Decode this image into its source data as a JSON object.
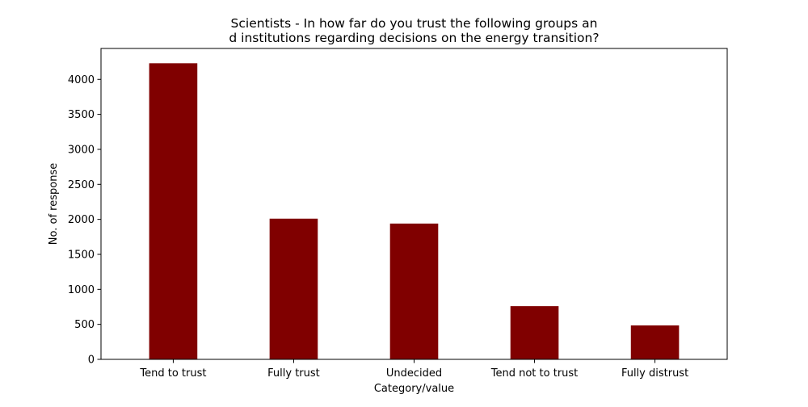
{
  "chart_data": {
    "type": "bar",
    "title": "Scientists - In how far do you trust the following groups an\nd institutions regarding decisions on the energy transition?",
    "title_lines": [
      "Scientists - In how far do you trust the following groups an",
      "d institutions regarding decisions on the energy transition?"
    ],
    "xlabel": "Category/value",
    "ylabel": "No. of response",
    "categories": [
      "Tend to trust",
      "Fully trust",
      "Undecided",
      "Tend not to trust",
      "Fully distrust"
    ],
    "values": [
      4230,
      2010,
      1940,
      760,
      485
    ],
    "ylim": [
      0,
      4441.5
    ],
    "yticks": [
      0,
      500,
      1000,
      1500,
      2000,
      2500,
      3000,
      3500,
      4000
    ],
    "bar_color": "#800000",
    "grid": false,
    "legend": "none"
  }
}
